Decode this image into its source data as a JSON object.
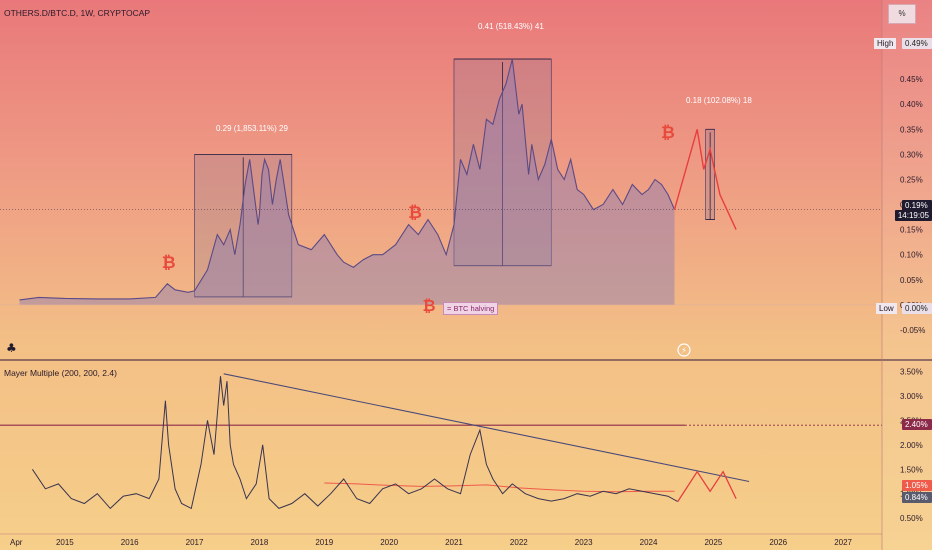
{
  "header": {
    "symbol_title": "OTHERS.D/BTC.D, 1W, CRYPTOCAP",
    "scale_button": "%"
  },
  "annotations": {
    "range_2017": "0.29 (1,853.11%) 29",
    "range_2021": "0.41 (518.43%) 41",
    "range_2025": "0.18 (102.08%) 18",
    "legend": "= BTC halving"
  },
  "tags": {
    "high_label": "High",
    "high_value": "0.49%",
    "current_value": "0.19%",
    "countdown": "14:19:05",
    "low_label": "Low",
    "low_value": "0.00%",
    "mm_value_red": "1.05%",
    "mm_value_gray": "0.84%",
    "mm_level": "2.40%"
  },
  "colors": {
    "price_line": "#5c4a86",
    "price_fill": "#8a7ab3",
    "projection": "#e83e3e",
    "trendline": "#4a4a78",
    "ma_line": "#ef5a4a",
    "level_line": "#8c2a4a"
  },
  "chart_data": [
    {
      "type": "area",
      "title": "OTHERS.D/BTC.D, 1W, CRYPTOCAP",
      "y_unit": "%",
      "ylim": [
        -0.07,
        0.52
      ],
      "y_ticks": [
        "0.45%",
        "0.40%",
        "0.35%",
        "0.30%",
        "0.25%",
        "0.20%",
        "0.15%",
        "0.10%",
        "0.05%",
        "0.00%",
        "-0.05%"
      ],
      "x_ticks": [
        "Apr",
        "2015",
        "2016",
        "2017",
        "2018",
        "2019",
        "2020",
        "2021",
        "2022",
        "2023",
        "2024",
        "2025",
        "2026",
        "2027"
      ],
      "series": [
        {
          "x": [
            2014.3,
            2014.6,
            2015.0,
            2015.5,
            2016.0,
            2016.4,
            2016.58,
            2016.7,
            2016.9,
            2017.0,
            2017.2,
            2017.35,
            2017.45,
            2017.55,
            2017.62,
            2017.7,
            2017.78,
            2017.85,
            2017.92,
            2017.98,
            2018.0,
            2018.04,
            2018.08,
            2018.14,
            2018.2,
            2018.26,
            2018.32,
            2018.38,
            2018.45,
            2018.6,
            2018.8,
            2019.0,
            2019.2,
            2019.3,
            2019.45,
            2019.6,
            2019.75,
            2019.9,
            2020.1,
            2020.3,
            2020.45,
            2020.6,
            2020.75,
            2020.88,
            2021.0,
            2021.1,
            2021.2,
            2021.3,
            2021.4,
            2021.5,
            2021.6,
            2021.7,
            2021.8,
            2021.9,
            2022.0,
            2022.05,
            2022.1,
            2022.15,
            2022.2,
            2022.3,
            2022.4,
            2022.5,
            2022.6,
            2022.7,
            2022.8,
            2022.9,
            2023.0,
            2023.15,
            2023.3,
            2023.45,
            2023.6,
            2023.75,
            2023.9,
            2024.0,
            2024.1,
            2024.2,
            2024.3,
            2024.4
          ],
          "y": [
            0.01,
            0.015,
            0.013,
            0.012,
            0.012,
            0.015,
            0.042,
            0.03,
            0.025,
            0.028,
            0.07,
            0.14,
            0.12,
            0.15,
            0.1,
            0.16,
            0.24,
            0.29,
            0.22,
            0.16,
            0.18,
            0.26,
            0.29,
            0.27,
            0.2,
            0.25,
            0.29,
            0.24,
            0.18,
            0.12,
            0.11,
            0.14,
            0.1,
            0.085,
            0.075,
            0.09,
            0.1,
            0.1,
            0.12,
            0.16,
            0.14,
            0.17,
            0.14,
            0.1,
            0.16,
            0.29,
            0.26,
            0.32,
            0.27,
            0.37,
            0.36,
            0.41,
            0.44,
            0.49,
            0.38,
            0.4,
            0.33,
            0.26,
            0.32,
            0.25,
            0.28,
            0.33,
            0.27,
            0.25,
            0.29,
            0.23,
            0.22,
            0.19,
            0.2,
            0.23,
            0.2,
            0.24,
            0.22,
            0.23,
            0.25,
            0.24,
            0.22,
            0.19
          ]
        },
        {
          "name": "projection",
          "x": [
            2024.4,
            2024.75,
            2024.85,
            2024.95,
            2025.1,
            2025.35
          ],
          "y": [
            0.19,
            0.35,
            0.27,
            0.31,
            0.22,
            0.15
          ]
        }
      ],
      "halving_marks": [
        2016.6,
        2020.4,
        2024.3
      ],
      "measured_moves": [
        {
          "x0": 2017.0,
          "x1": 2018.5,
          "y0": 0.016,
          "y1": 0.3
        },
        {
          "x0": 2021.0,
          "x1": 2022.5,
          "y0": 0.078,
          "y1": 0.49
        },
        {
          "x0": 2024.88,
          "x1": 2025.02,
          "y0": 0.17,
          "y1": 0.35
        }
      ]
    },
    {
      "type": "line",
      "title": "Mayer Multiple (200, 200, 2.4)",
      "y_unit": "%",
      "ylim": [
        0.3,
        3.65
      ],
      "y_ticks": [
        "3.50%",
        "3.00%",
        "2.50%",
        "2.00%",
        "1.50%",
        "1.00%",
        "0.50%"
      ],
      "level": 2.4,
      "series": [
        {
          "name": "Mayer Multiple",
          "x": [
            2014.5,
            2014.7,
            2014.9,
            2015.1,
            2015.3,
            2015.5,
            2015.7,
            2015.9,
            2016.1,
            2016.3,
            2016.45,
            2016.55,
            2016.6,
            2016.7,
            2016.8,
            2016.95,
            2017.1,
            2017.2,
            2017.3,
            2017.4,
            2017.45,
            2017.5,
            2017.55,
            2017.6,
            2017.7,
            2017.8,
            2017.95,
            2018.05,
            2018.15,
            2018.3,
            2018.5,
            2018.7,
            2018.9,
            2019.1,
            2019.3,
            2019.5,
            2019.7,
            2019.9,
            2020.1,
            2020.3,
            2020.5,
            2020.7,
            2020.9,
            2021.1,
            2021.25,
            2021.4,
            2021.5,
            2021.6,
            2021.75,
            2021.9,
            2022.1,
            2022.3,
            2022.5,
            2022.7,
            2022.9,
            2023.1,
            2023.3,
            2023.5,
            2023.7,
            2023.9,
            2024.1,
            2024.3,
            2024.45
          ],
          "y": [
            1.5,
            1.1,
            1.2,
            0.9,
            0.8,
            1.0,
            0.7,
            0.95,
            1.0,
            0.9,
            1.3,
            2.9,
            2.0,
            1.1,
            0.8,
            0.7,
            1.6,
            2.5,
            1.8,
            3.4,
            2.8,
            3.3,
            2.0,
            1.6,
            1.3,
            0.9,
            1.2,
            2.0,
            0.9,
            0.7,
            0.8,
            1.0,
            0.75,
            1.0,
            1.3,
            0.9,
            0.8,
            1.1,
            1.2,
            1.0,
            1.1,
            1.3,
            1.1,
            1.0,
            1.8,
            2.3,
            1.6,
            1.3,
            1.0,
            1.2,
            1.0,
            0.9,
            0.85,
            0.9,
            1.0,
            0.95,
            1.05,
            1.0,
            1.1,
            1.05,
            1.0,
            0.95,
            0.84
          ]
        },
        {
          "name": "MA",
          "x": [
            2019.0,
            2019.5,
            2020.0,
            2020.5,
            2021.0,
            2021.5,
            2022.0,
            2022.5,
            2023.0,
            2023.5,
            2024.0,
            2024.4
          ],
          "y": [
            1.22,
            1.2,
            1.17,
            1.15,
            1.16,
            1.18,
            1.12,
            1.08,
            1.05,
            1.04,
            1.05,
            1.05
          ]
        },
        {
          "name": "trendline",
          "x": [
            2017.45,
            2025.55
          ],
          "y": [
            3.45,
            1.25
          ]
        },
        {
          "name": "projection",
          "x": [
            2024.45,
            2024.75,
            2024.95,
            2025.15,
            2025.35
          ],
          "y": [
            0.84,
            1.45,
            1.05,
            1.45,
            0.9
          ]
        }
      ]
    }
  ]
}
